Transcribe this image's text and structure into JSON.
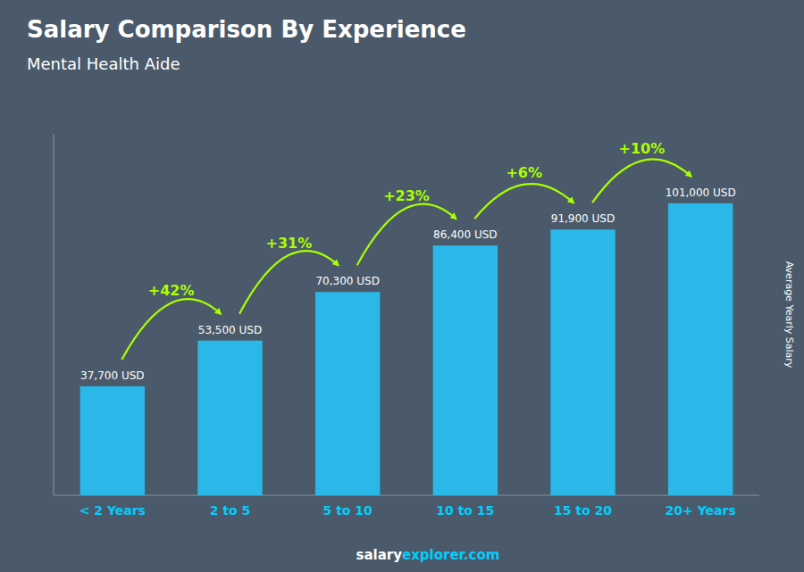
{
  "chart_data": {
    "type": "bar",
    "title": "Salary Comparison By Experience",
    "subtitle": "Mental Health Aide",
    "ylabel": "Average Yearly Salary",
    "categories": [
      "< 2 Years",
      "2 to 5",
      "5 to 10",
      "10 to 15",
      "15 to 20",
      "20+ Years"
    ],
    "values": [
      37700,
      53500,
      70300,
      86400,
      91900,
      101000
    ],
    "value_labels": [
      "37,700 USD",
      "53,500 USD",
      "70,300 USD",
      "86,400 USD",
      "91,900 USD",
      "101,000 USD"
    ],
    "data_labels": true,
    "annotations": [
      "+42%",
      "+31%",
      "+23%",
      "+6%",
      "+10%"
    ],
    "footer": [
      "salary",
      "explorer.com"
    ],
    "color": "#29b8e8",
    "ylim": [
      0,
      125000
    ],
    "tick_labels": "x",
    "grid": false
  }
}
